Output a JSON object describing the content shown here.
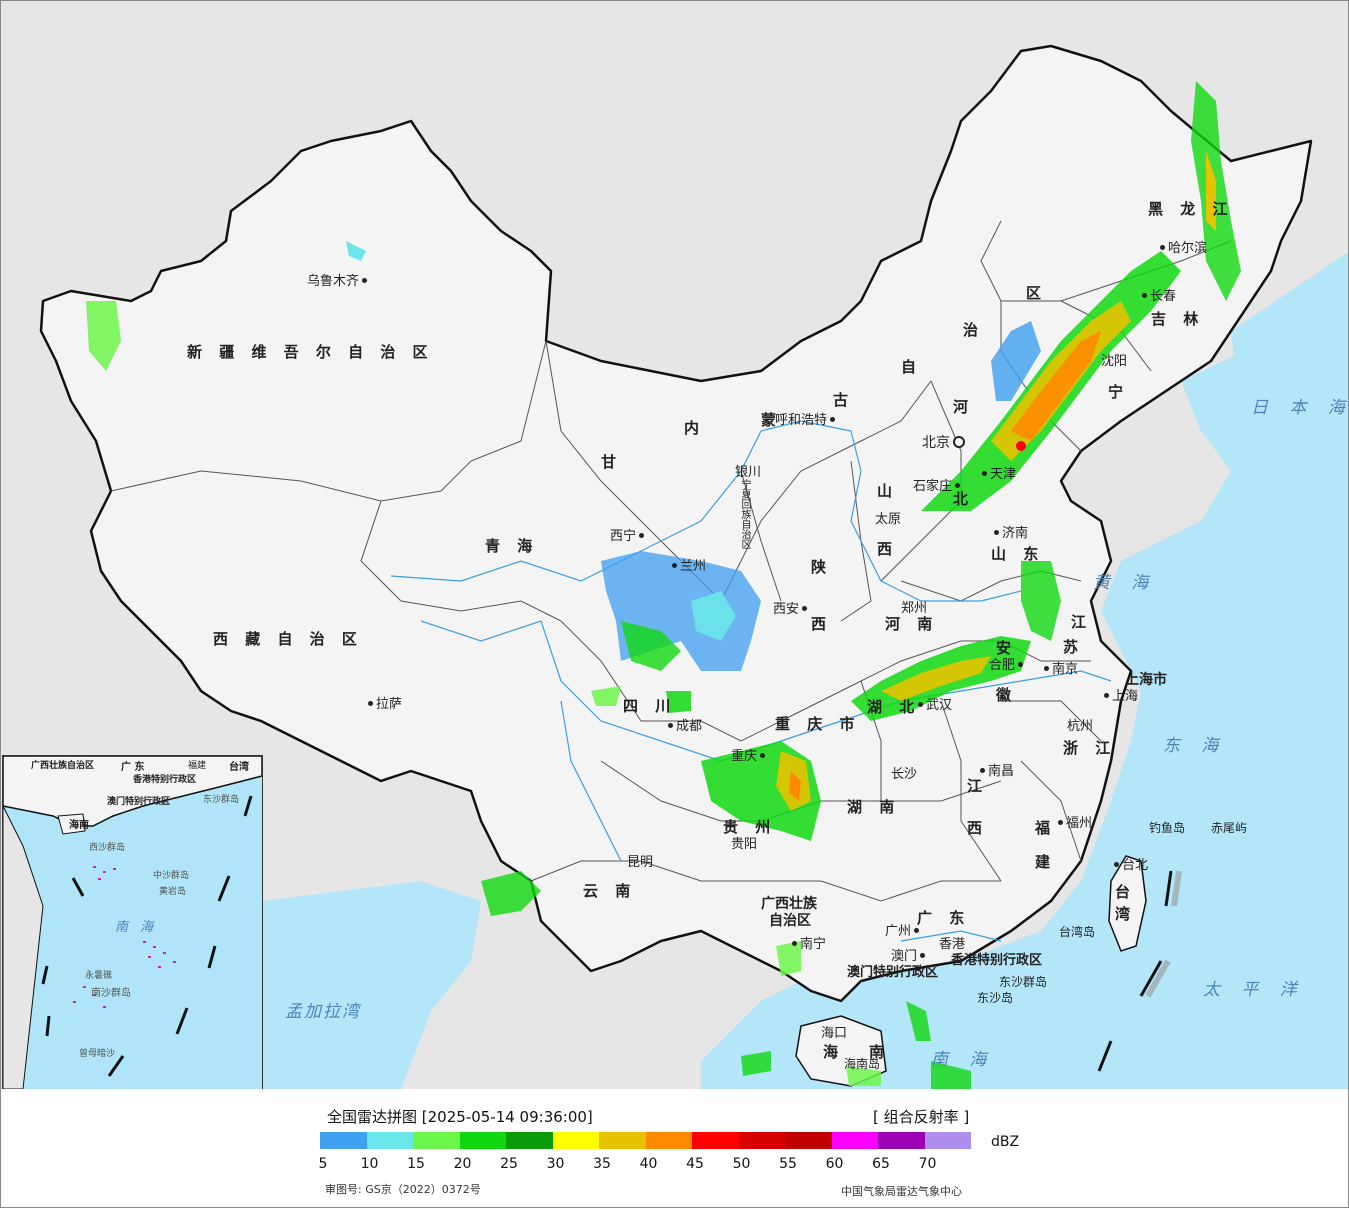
{
  "header": {
    "title": "全国雷达拼图 [2025-05-14 09:36:00]",
    "product": "[ 组合反射率 ]"
  },
  "legend": {
    "unit": "dBZ",
    "colors": [
      "#3f9ff0",
      "#6ae6ea",
      "#6cf54a",
      "#10d810",
      "#0a9b0a",
      "#ffff00",
      "#e6c200",
      "#ff8a00",
      "#ff0000",
      "#d80000",
      "#c00000",
      "#ff00ff",
      "#9a00b4",
      "#b08ef0"
    ],
    "ticks": [
      "5",
      "10",
      "15",
      "20",
      "25",
      "30",
      "35",
      "40",
      "45",
      "50",
      "55",
      "60",
      "65",
      "70"
    ]
  },
  "footer": {
    "review_number": "审图号: GS京（2022）0372号",
    "agency": "中国气象局雷达气象中心"
  },
  "map": {
    "regions": [
      {
        "id": "xinjiang",
        "text": "新 疆 维 吾 尔 自 治 区"
      },
      {
        "id": "xizang",
        "text": "西 藏 自 治 区"
      },
      {
        "id": "qinghai",
        "text": "青     海"
      },
      {
        "id": "gansu",
        "text": "甘"
      },
      {
        "id": "neimeng_nei",
        "text": "内"
      },
      {
        "id": "neimeng_meng",
        "text": "蒙"
      },
      {
        "id": "neimeng_gu",
        "text": "古"
      },
      {
        "id": "neimeng_zi",
        "text": "自"
      },
      {
        "id": "neimeng_zhi",
        "text": "治"
      },
      {
        "id": "neimeng_qu",
        "text": "区"
      },
      {
        "id": "heilongjiang",
        "text": "黑 龙 江"
      },
      {
        "id": "jilin",
        "text": "吉 林"
      },
      {
        "id": "liaoning",
        "text": "宁"
      },
      {
        "id": "hebei_he",
        "text": "河"
      },
      {
        "id": "hebei_bei",
        "text": "北"
      },
      {
        "id": "shanxi_shan",
        "text": "山"
      },
      {
        "id": "shanxi_xi",
        "text": "西"
      },
      {
        "id": "shaanxi_shan",
        "text": "陕"
      },
      {
        "id": "shaanxi_xi",
        "text": "西"
      },
      {
        "id": "henan",
        "text": "河 南"
      },
      {
        "id": "shandong",
        "text": "山   东"
      },
      {
        "id": "jiangsu_jiang",
        "text": "江"
      },
      {
        "id": "jiangsu_su",
        "text": "苏"
      },
      {
        "id": "anhui_an",
        "text": "安"
      },
      {
        "id": "anhui_hui",
        "text": "徽"
      },
      {
        "id": "sichuan",
        "text": "四     川"
      },
      {
        "id": "chongqing",
        "text": "重 庆 市"
      },
      {
        "id": "hubei",
        "text": "湖   北"
      },
      {
        "id": "hunan",
        "text": "湖   南"
      },
      {
        "id": "jiangxi_jiang",
        "text": "江"
      },
      {
        "id": "jiangxi_xi",
        "text": "西"
      },
      {
        "id": "zhejiang",
        "text": "浙 江"
      },
      {
        "id": "fujian_fu",
        "text": "福"
      },
      {
        "id": "fujian_jian",
        "text": "建"
      },
      {
        "id": "guizhou",
        "text": "贵  州"
      },
      {
        "id": "yunnan",
        "text": "云   南"
      },
      {
        "id": "guangxi_1",
        "text": "广西壮族"
      },
      {
        "id": "guangxi_2",
        "text": "自治区"
      },
      {
        "id": "guangdong",
        "text": "广   东"
      },
      {
        "id": "hainan_hai",
        "text": "海"
      },
      {
        "id": "hainan_nan",
        "text": "南"
      },
      {
        "id": "taiwan_tai",
        "text": "台"
      },
      {
        "id": "taiwan_wan",
        "text": "湾"
      },
      {
        "id": "shanghai",
        "text": "上海市"
      },
      {
        "id": "hongkong_sar",
        "text": "香港特别行政区"
      },
      {
        "id": "macau_sar",
        "text": "澳门特别行政区"
      },
      {
        "id": "ningxia",
        "text": "宁夏回族自治区"
      }
    ],
    "cities": [
      {
        "id": "urumqi",
        "text": "乌鲁木齐"
      },
      {
        "id": "lhasa",
        "text": "拉萨"
      },
      {
        "id": "xining",
        "text": "西宁"
      },
      {
        "id": "lanzhou",
        "text": "兰州"
      },
      {
        "id": "yinchuan",
        "text": "银川"
      },
      {
        "id": "hohhot",
        "text": "呼和浩特"
      },
      {
        "id": "beijing",
        "text": "北京"
      },
      {
        "id": "tianjin",
        "text": "天津"
      },
      {
        "id": "shijiazhuang",
        "text": "石家庄"
      },
      {
        "id": "taiyuan",
        "text": "太原"
      },
      {
        "id": "xian",
        "text": "西安"
      },
      {
        "id": "zhengzhou",
        "text": "郑州"
      },
      {
        "id": "jinan",
        "text": "济南"
      },
      {
        "id": "harbin",
        "text": "哈尔滨"
      },
      {
        "id": "changchun",
        "text": "长春"
      },
      {
        "id": "shenyang",
        "text": "沈阳"
      },
      {
        "id": "chengdu",
        "text": "成都"
      },
      {
        "id": "chongqing_city",
        "text": "重庆"
      },
      {
        "id": "wuhan",
        "text": "武汉"
      },
      {
        "id": "hefei",
        "text": "合肥"
      },
      {
        "id": "nanjing",
        "text": "南京"
      },
      {
        "id": "shanghai_city",
        "text": "上海"
      },
      {
        "id": "hangzhou",
        "text": "杭州"
      },
      {
        "id": "changsha",
        "text": "长沙"
      },
      {
        "id": "nanchang",
        "text": "南昌"
      },
      {
        "id": "fuzhou",
        "text": "福州"
      },
      {
        "id": "guiyang",
        "text": "贵阳"
      },
      {
        "id": "kunming",
        "text": "昆明"
      },
      {
        "id": "nanning",
        "text": "南宁"
      },
      {
        "id": "guangzhou",
        "text": "广州"
      },
      {
        "id": "hongkong",
        "text": "香港"
      },
      {
        "id": "macau",
        "text": "澳门"
      },
      {
        "id": "haikou",
        "text": "海口"
      },
      {
        "id": "taipei",
        "text": "台北"
      }
    ],
    "islands": [
      {
        "id": "diaoyu",
        "text": "钓鱼岛"
      },
      {
        "id": "chiwei",
        "text": "赤尾屿"
      },
      {
        "id": "dongsha_qundao",
        "text": "东沙群岛"
      },
      {
        "id": "dongsha_dao",
        "text": "东沙岛"
      },
      {
        "id": "taiwan_dao",
        "text": "台湾岛"
      },
      {
        "id": "hainan_dao",
        "text": "海南岛"
      }
    ],
    "seas": [
      {
        "id": "japan_sea",
        "text": "日 本 海"
      },
      {
        "id": "yellow_sea",
        "text": "黄 海"
      },
      {
        "id": "east_sea",
        "text": "东 海"
      },
      {
        "id": "pacific",
        "text": "太 平 洋"
      },
      {
        "id": "south_sea",
        "text": "南 海"
      },
      {
        "id": "bengal",
        "text": "孟加拉湾"
      }
    ],
    "inset": {
      "labels": [
        {
          "id": "guangxi",
          "text": "广西壮族自治区"
        },
        {
          "id": "guangdong",
          "text": "广 东"
        },
        {
          "id": "fujian",
          "text": "福建"
        },
        {
          "id": "taiwan",
          "text": "台湾"
        },
        {
          "id": "hk",
          "text": "香港特别行政区"
        },
        {
          "id": "macau",
          "text": "澳门特别行政区"
        },
        {
          "id": "hainan",
          "text": "海南"
        },
        {
          "id": "dongsha",
          "text": "东沙群岛"
        },
        {
          "id": "xisha",
          "text": "西沙群岛"
        },
        {
          "id": "zhongsha",
          "text": "中沙群岛"
        },
        {
          "id": "huangyan",
          "text": "黄岩岛"
        },
        {
          "id": "nansha",
          "text": "南沙群岛"
        },
        {
          "id": "yongshu",
          "text": "永暑礁"
        },
        {
          "id": "zengmu",
          "text": "曾母暗沙"
        },
        {
          "id": "nanhai",
          "text": "南 海"
        }
      ]
    }
  }
}
